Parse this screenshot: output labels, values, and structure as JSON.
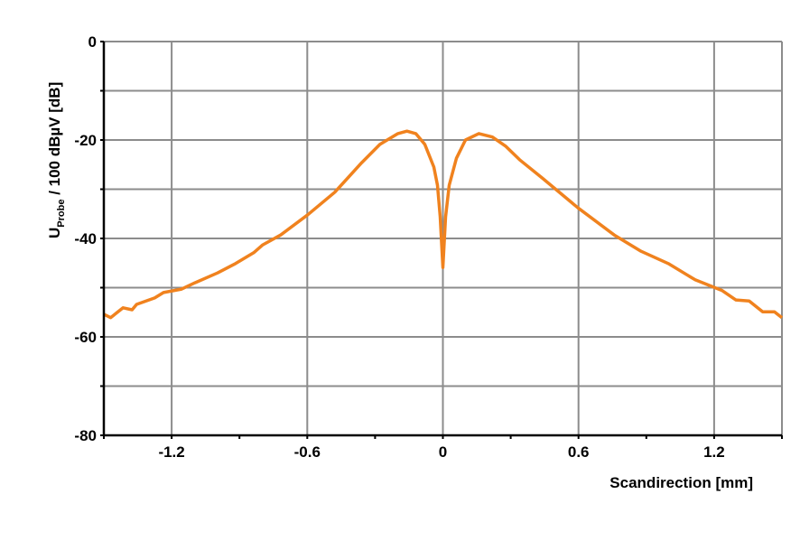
{
  "chart_data": {
    "type": "line",
    "title": "",
    "xlabel": "Scandirection [mm]",
    "ylabel": {
      "main": "U",
      "subscript": "Probe",
      "rest": " / 100 dBµV [dB]"
    },
    "xlim": [
      -1.5,
      1.5
    ],
    "ylim": [
      -80,
      0
    ],
    "x_ticks": [
      -1.2,
      -0.6,
      0,
      0.6,
      1.2
    ],
    "x_tick_labels": [
      "-1.2",
      "-0.6",
      "0",
      "0.6",
      "1.2"
    ],
    "y_ticks": [
      0,
      -20,
      -40,
      -60,
      -80
    ],
    "y_tick_labels": [
      "0",
      "-20",
      "-40",
      "-60",
      "-80"
    ],
    "grid": true,
    "line_color": "#f0821e",
    "series": [
      {
        "x": [
          -1.5,
          -1.47,
          -1.415,
          -1.375,
          -1.355,
          -1.275,
          -1.236,
          -1.156,
          -1.097,
          -0.997,
          -0.917,
          -0.837,
          -0.797,
          -0.718,
          -0.598,
          -0.478,
          -0.359,
          -0.279,
          -0.199,
          -0.159,
          -0.12,
          -0.08,
          -0.04,
          -0.024,
          -0.012,
          0,
          0.012,
          0.028,
          0.06,
          0.1,
          0.159,
          0.219,
          0.279,
          0.339,
          0.439,
          0.598,
          0.758,
          0.877,
          0.997,
          1.116,
          1.236,
          1.296,
          1.355,
          1.415,
          1.467,
          1.5
        ],
        "y": [
          -55.4,
          -56.1,
          -54.1,
          -54.5,
          -53.4,
          -52.1,
          -51,
          -50.3,
          -49,
          -47,
          -45.1,
          -42.9,
          -41.3,
          -39.3,
          -35.2,
          -30.6,
          -24.6,
          -20.9,
          -18.7,
          -18.2,
          -18.7,
          -20.9,
          -25.5,
          -29.2,
          -35.6,
          -45.9,
          -35.6,
          -29.2,
          -23.7,
          -20,
          -18.7,
          -19.4,
          -21.3,
          -24,
          -27.7,
          -33.8,
          -39.3,
          -42.6,
          -45.1,
          -48.4,
          -50.6,
          -52.5,
          -52.7,
          -54.9,
          -54.9,
          -56.1
        ]
      }
    ]
  }
}
